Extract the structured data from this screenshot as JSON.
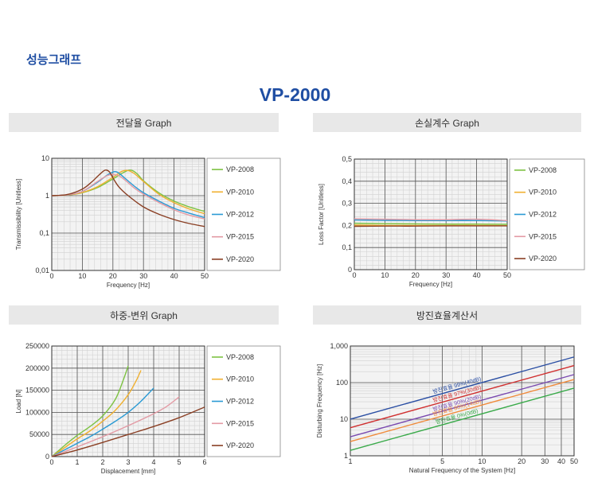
{
  "page": {
    "section_title": "성능그래프",
    "model_title": "VP-2000"
  },
  "chart_data": [
    {
      "id": "transmissibility",
      "header": "전달율 Graph",
      "type": "line",
      "xlabel": "Frequency [Hz]",
      "ylabel": "Transmissibility [Unitless]",
      "xlim": [
        0,
        50
      ],
      "ylim": [
        0.01,
        10
      ],
      "yscale": "log",
      "xticks": [
        0,
        10,
        20,
        30,
        40,
        50
      ],
      "xtick_labels": [
        "0",
        "10",
        "20",
        "30",
        "40",
        "50"
      ],
      "yticks": [
        0.01,
        0.1,
        1,
        10
      ],
      "ytick_labels": [
        "0,01",
        "0,1",
        "1",
        "10"
      ],
      "legend_position": "right",
      "series": [
        {
          "name": "VP-2008",
          "color": "#7dc242",
          "x": [
            0,
            5,
            10,
            15,
            20,
            24,
            26,
            28,
            30,
            35,
            40,
            45,
            50
          ],
          "y": [
            1,
            1.04,
            1.2,
            1.65,
            2.8,
            4.4,
            4.8,
            3.8,
            2.5,
            1.2,
            0.72,
            0.5,
            0.38
          ]
        },
        {
          "name": "VP-2010",
          "color": "#f0b030",
          "x": [
            0,
            5,
            10,
            15,
            20,
            23,
            25,
            27,
            30,
            35,
            40,
            45,
            50
          ],
          "y": [
            1,
            1.04,
            1.22,
            1.75,
            3.1,
            4.5,
            4.7,
            3.9,
            2.4,
            1.1,
            0.65,
            0.44,
            0.33
          ]
        },
        {
          "name": "VP-2012",
          "color": "#2a9ad4",
          "x": [
            0,
            5,
            10,
            15,
            18,
            20,
            21,
            22,
            24,
            27,
            30,
            35,
            40,
            45,
            50
          ],
          "y": [
            1,
            1.05,
            1.3,
            2.3,
            3.5,
            4.3,
            4.4,
            4.0,
            2.9,
            1.8,
            1.2,
            0.72,
            0.46,
            0.34,
            0.26
          ]
        },
        {
          "name": "VP-2015",
          "color": "#e39aa4",
          "x": [
            0,
            5,
            10,
            15,
            18,
            20,
            22,
            24,
            27,
            30,
            35,
            40,
            45,
            50
          ],
          "y": [
            1,
            1.05,
            1.3,
            2.4,
            3.4,
            3.7,
            3.4,
            2.6,
            1.6,
            1.1,
            0.66,
            0.42,
            0.3,
            0.24
          ]
        },
        {
          "name": "VP-2020",
          "color": "#8a3f24",
          "x": [
            0,
            5,
            10,
            13,
            15,
            17,
            18,
            19,
            20,
            22,
            25,
            30,
            35,
            40,
            45,
            50
          ],
          "y": [
            1,
            1.07,
            1.5,
            2.3,
            3.3,
            4.6,
            4.8,
            4.2,
            3.0,
            1.7,
            1.0,
            0.5,
            0.32,
            0.23,
            0.18,
            0.15
          ]
        }
      ]
    },
    {
      "id": "loss-factor",
      "header": "손실계수 Graph",
      "type": "line",
      "xlabel": "Frequency [Hz]",
      "ylabel": "Loss Factor [Unitless]",
      "xlim": [
        0,
        50
      ],
      "ylim": [
        0,
        0.5
      ],
      "yscale": "linear",
      "xticks": [
        0,
        10,
        20,
        30,
        40,
        50
      ],
      "xtick_labels": [
        "0",
        "10",
        "20",
        "30",
        "40",
        "50"
      ],
      "yticks": [
        0,
        0.1,
        0.2,
        0.3,
        0.4,
        0.5
      ],
      "ytick_labels": [
        "0",
        "0,1",
        "0,2",
        "0,3",
        "0,4",
        "0,5"
      ],
      "legend_position": "right",
      "series": [
        {
          "name": "VP-2008",
          "color": "#7dc242",
          "x": [
            0,
            10,
            20,
            30,
            40,
            50
          ],
          "y": [
            0.21,
            0.208,
            0.207,
            0.206,
            0.206,
            0.205
          ]
        },
        {
          "name": "VP-2010",
          "color": "#f0b030",
          "x": [
            0,
            10,
            20,
            30,
            40,
            50
          ],
          "y": [
            0.202,
            0.2,
            0.2,
            0.2,
            0.2,
            0.199
          ]
        },
        {
          "name": "VP-2012",
          "color": "#2a9ad4",
          "x": [
            0,
            10,
            20,
            30,
            40,
            50
          ],
          "y": [
            0.225,
            0.223,
            0.222,
            0.222,
            0.222,
            0.22
          ]
        },
        {
          "name": "VP-2015",
          "color": "#e39aa4",
          "x": [
            0,
            10,
            20,
            30,
            40,
            50
          ],
          "y": [
            0.23,
            0.228,
            0.226,
            0.226,
            0.228,
            0.222
          ]
        },
        {
          "name": "VP-2020",
          "color": "#8a3f24",
          "x": [
            0,
            10,
            20,
            30,
            40,
            50
          ],
          "y": [
            0.196,
            0.197,
            0.197,
            0.198,
            0.198,
            0.198
          ]
        }
      ]
    },
    {
      "id": "load-displacement",
      "header": "하중-변위 Graph",
      "type": "line",
      "xlabel": "Displacement [mm]",
      "ylabel": "Load [N]",
      "xlim": [
        0,
        6
      ],
      "ylim": [
        0,
        250000
      ],
      "yscale": "linear",
      "xticks": [
        0,
        1,
        2,
        3,
        4,
        5,
        6
      ],
      "xtick_labels": [
        "0",
        "1",
        "2",
        "3",
        "4",
        "5",
        "6"
      ],
      "yticks": [
        0,
        50000,
        100000,
        150000,
        200000,
        250000
      ],
      "ytick_labels": [
        "0",
        "50000",
        "100000",
        "150000",
        "200000",
        "250000"
      ],
      "legend_position": "right",
      "series": [
        {
          "name": "VP-2008",
          "color": "#7dc242",
          "x": [
            0,
            0.5,
            1,
            1.5,
            2,
            2.5,
            2.8,
            3.0
          ],
          "y": [
            0,
            25000,
            48000,
            68000,
            92000,
            130000,
            172000,
            205000
          ]
        },
        {
          "name": "VP-2010",
          "color": "#f0b030",
          "x": [
            0,
            0.5,
            1,
            1.5,
            2,
            2.5,
            3,
            3.3,
            3.5
          ],
          "y": [
            0,
            20000,
            40000,
            58000,
            80000,
            105000,
            140000,
            170000,
            195000
          ]
        },
        {
          "name": "VP-2012",
          "color": "#2a9ad4",
          "x": [
            0,
            0.5,
            1,
            1.5,
            2,
            2.5,
            3,
            3.5,
            4
          ],
          "y": [
            0,
            15000,
            30000,
            45000,
            62000,
            80000,
            100000,
            125000,
            155000
          ]
        },
        {
          "name": "VP-2015",
          "color": "#e39aa4",
          "x": [
            0,
            1,
            2,
            3,
            4,
            4.5,
            5
          ],
          "y": [
            0,
            22000,
            45000,
            70000,
            97000,
            113000,
            135000
          ]
        },
        {
          "name": "VP-2020",
          "color": "#8a3f24",
          "x": [
            0,
            1,
            2,
            3,
            4,
            5,
            6
          ],
          "y": [
            0,
            15000,
            32000,
            50000,
            68000,
            88000,
            112000
          ]
        }
      ]
    },
    {
      "id": "isolation-efficiency",
      "header": "방진효율계산서",
      "type": "line",
      "xlabel": "Natural Frequency of the System [Hz]",
      "ylabel": "Disturbing Frequency [Hz]",
      "xlim": [
        1,
        50
      ],
      "ylim": [
        1,
        1000
      ],
      "xscale": "log",
      "yscale": "log",
      "xticks": [
        1,
        5,
        10,
        20,
        30,
        40,
        50
      ],
      "xtick_labels": [
        "1",
        "5",
        "10",
        "20",
        "30",
        "40",
        "50"
      ],
      "yticks": [
        1,
        10,
        100,
        1000
      ],
      "ytick_labels": [
        "1",
        "10",
        "100",
        "1,000"
      ],
      "series": [
        {
          "name": "방진효율 99%(40dB)",
          "color": "#2a4ea3",
          "x": [
            1,
            50
          ],
          "y": [
            10.05,
            502.5
          ]
        },
        {
          "name": "방진효율 97%(30dB)",
          "color": "#d03030",
          "x": [
            1,
            50
          ],
          "y": [
            5.86,
            293
          ]
        },
        {
          "name": "방진효율 90%(20dB)",
          "color": "#7a4ab0",
          "x": [
            1,
            50
          ],
          "y": [
            3.32,
            166
          ]
        },
        {
          "name": "방진효율 80%(14dB)",
          "color": "#f08a3a",
          "x": [
            1,
            50
          ],
          "y": [
            2.45,
            122
          ]
        },
        {
          "name": "방진효율 0%(0dB)",
          "color": "#3aaa4a",
          "x": [
            1,
            50
          ],
          "y": [
            1.41,
            70.7
          ]
        }
      ]
    }
  ]
}
